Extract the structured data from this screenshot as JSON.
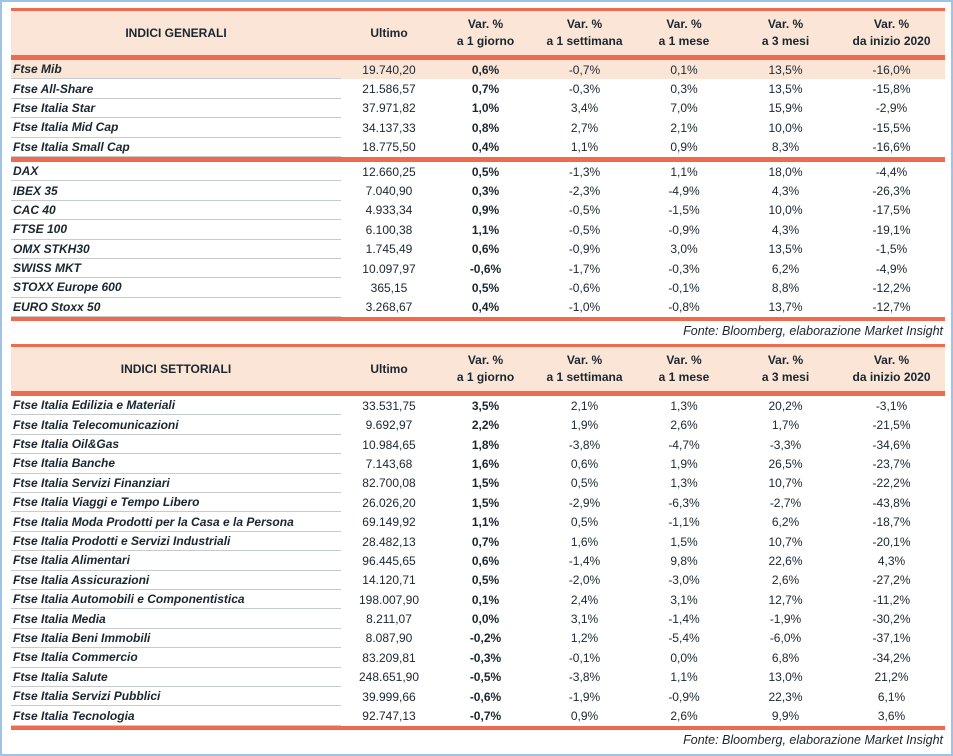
{
  "colors": {
    "accent_red": "#ee6b50",
    "header_peach": "#fbe5d6",
    "text_ink": "#1a2630",
    "frame_blue": "#9dc3e6"
  },
  "columns": [
    {
      "label": "Ultimo",
      "sub": ""
    },
    {
      "label": "Var. %",
      "sub": "a 1 giorno"
    },
    {
      "label": "Var. %",
      "sub": "a 1 settimana"
    },
    {
      "label": "Var. %",
      "sub": "a 1 mese"
    },
    {
      "label": "Var. %",
      "sub": "a 3 mesi"
    },
    {
      "label": "Var. %",
      "sub": "da inizio 2020"
    }
  ],
  "tables": [
    {
      "title": "INDICI GENERALI",
      "source": "Fonte: Bloomberg, elaborazione Market Insight",
      "groups": [
        {
          "rows": [
            {
              "name": "Ftse Mib",
              "highlight": true,
              "values": [
                "19.740,20",
                "0,6%",
                "-0,7%",
                "0,1%",
                "13,5%",
                "-16,0%"
              ]
            },
            {
              "name": "Ftse All-Share",
              "highlight": false,
              "values": [
                "21.586,57",
                "0,7%",
                "-0,3%",
                "0,3%",
                "13,5%",
                "-15,8%"
              ]
            },
            {
              "name": "Ftse Italia Star",
              "highlight": false,
              "values": [
                "37.971,82",
                "1,0%",
                "3,4%",
                "7,0%",
                "15,9%",
                "-2,9%"
              ]
            },
            {
              "name": "Ftse Italia Mid Cap",
              "highlight": false,
              "values": [
                "34.137,33",
                "0,8%",
                "2,7%",
                "2,1%",
                "10,0%",
                "-15,5%"
              ]
            },
            {
              "name": "Ftse Italia Small Cap",
              "highlight": false,
              "values": [
                "18.775,50",
                "0,4%",
                "1,1%",
                "0,9%",
                "8,3%",
                "-16,6%"
              ]
            }
          ]
        },
        {
          "rows": [
            {
              "name": "DAX",
              "highlight": false,
              "values": [
                "12.660,25",
                "0,5%",
                "-1,3%",
                "1,1%",
                "18,0%",
                "-4,4%"
              ]
            },
            {
              "name": "IBEX 35",
              "highlight": false,
              "values": [
                "7.040,90",
                "0,3%",
                "-2,3%",
                "-4,9%",
                "4,3%",
                "-26,3%"
              ]
            },
            {
              "name": "CAC 40",
              "highlight": false,
              "values": [
                "4.933,34",
                "0,9%",
                "-0,5%",
                "-1,5%",
                "10,0%",
                "-17,5%"
              ]
            },
            {
              "name": "FTSE 100",
              "highlight": false,
              "values": [
                "6.100,38",
                "1,1%",
                "-0,5%",
                "-0,9%",
                "4,3%",
                "-19,1%"
              ]
            },
            {
              "name": "OMX STKH30",
              "highlight": false,
              "values": [
                "1.745,49",
                "0,6%",
                "-0,9%",
                "3,0%",
                "13,5%",
                "-1,5%"
              ]
            },
            {
              "name": "SWISS MKT",
              "highlight": false,
              "values": [
                "10.097,97",
                "-0,6%",
                "-1,7%",
                "-0,3%",
                "6,2%",
                "-4,9%"
              ]
            },
            {
              "name": "STOXX Europe 600",
              "highlight": false,
              "values": [
                "365,15",
                "0,5%",
                "-0,6%",
                "-0,1%",
                "8,8%",
                "-12,2%"
              ]
            },
            {
              "name": "EURO Stoxx 50",
              "highlight": false,
              "values": [
                "3.268,67",
                "0,4%",
                "-1,0%",
                "-0,8%",
                "13,7%",
                "-12,7%"
              ]
            }
          ]
        }
      ]
    },
    {
      "title": "INDICI SETTORIALI",
      "source": "Fonte: Bloomberg, elaborazione Market Insight",
      "groups": [
        {
          "rows": [
            {
              "name": "Ftse Italia Edilizia e Materiali",
              "highlight": false,
              "values": [
                "33.531,75",
                "3,5%",
                "2,1%",
                "1,3%",
                "20,2%",
                "-3,1%"
              ]
            },
            {
              "name": "Ftse Italia Telecomunicazioni",
              "highlight": false,
              "values": [
                "9.692,97",
                "2,2%",
                "1,9%",
                "2,6%",
                "1,7%",
                "-21,5%"
              ]
            },
            {
              "name": "Ftse Italia Oil&Gas",
              "highlight": false,
              "values": [
                "10.984,65",
                "1,8%",
                "-3,8%",
                "-4,7%",
                "-3,3%",
                "-34,6%"
              ]
            },
            {
              "name": "Ftse Italia Banche",
              "highlight": false,
              "values": [
                "7.143,68",
                "1,6%",
                "0,6%",
                "1,9%",
                "26,5%",
                "-23,7%"
              ]
            },
            {
              "name": "Ftse Italia Servizi Finanziari",
              "highlight": false,
              "values": [
                "82.700,08",
                "1,5%",
                "0,5%",
                "1,3%",
                "10,7%",
                "-22,2%"
              ]
            },
            {
              "name": "Ftse Italia Viaggi e Tempo Libero",
              "highlight": false,
              "values": [
                "26.026,20",
                "1,5%",
                "-2,9%",
                "-6,3%",
                "-2,7%",
                "-43,8%"
              ]
            },
            {
              "name": "Ftse Italia Moda Prodotti per la Casa e la Persona",
              "highlight": false,
              "values": [
                "69.149,92",
                "1,1%",
                "0,5%",
                "-1,1%",
                "6,2%",
                "-18,7%"
              ]
            },
            {
              "name": "Ftse Italia Prodotti e Servizi Industriali",
              "highlight": false,
              "values": [
                "28.482,13",
                "0,7%",
                "1,6%",
                "1,5%",
                "10,7%",
                "-20,1%"
              ]
            },
            {
              "name": "Ftse Italia Alimentari",
              "highlight": false,
              "values": [
                "96.445,65",
                "0,6%",
                "-1,4%",
                "9,8%",
                "22,6%",
                "4,3%"
              ]
            },
            {
              "name": "Ftse Italia Assicurazioni",
              "highlight": false,
              "values": [
                "14.120,71",
                "0,5%",
                "-2,0%",
                "-3,0%",
                "2,6%",
                "-27,2%"
              ]
            },
            {
              "name": "Ftse Italia Automobili e Componentistica",
              "highlight": false,
              "values": [
                "198.007,90",
                "0,1%",
                "2,4%",
                "3,1%",
                "12,7%",
                "-11,2%"
              ]
            },
            {
              "name": "Ftse Italia Media",
              "highlight": false,
              "values": [
                "8.211,07",
                "0,0%",
                "3,1%",
                "-1,4%",
                "-1,9%",
                "-30,2%"
              ]
            },
            {
              "name": "Ftse Italia Beni Immobili",
              "highlight": false,
              "values": [
                "8.087,90",
                "-0,2%",
                "1,2%",
                "-5,4%",
                "-6,0%",
                "-37,1%"
              ]
            },
            {
              "name": "Ftse Italia Commercio",
              "highlight": false,
              "values": [
                "83.209,81",
                "-0,3%",
                "-0,1%",
                "0,0%",
                "6,8%",
                "-34,2%"
              ]
            },
            {
              "name": "Ftse Italia Salute",
              "highlight": false,
              "values": [
                "248.651,90",
                "-0,5%",
                "-3,8%",
                "1,1%",
                "13,0%",
                "21,2%"
              ]
            },
            {
              "name": "Ftse Italia Servizi Pubblici",
              "highlight": false,
              "values": [
                "39.999,66",
                "-0,6%",
                "-1,9%",
                "-0,9%",
                "22,3%",
                "6,1%"
              ]
            },
            {
              "name": "Ftse Italia Tecnologia",
              "highlight": false,
              "values": [
                "92.747,13",
                "-0,7%",
                "0,9%",
                "2,6%",
                "9,9%",
                "3,6%"
              ]
            }
          ]
        }
      ]
    }
  ]
}
